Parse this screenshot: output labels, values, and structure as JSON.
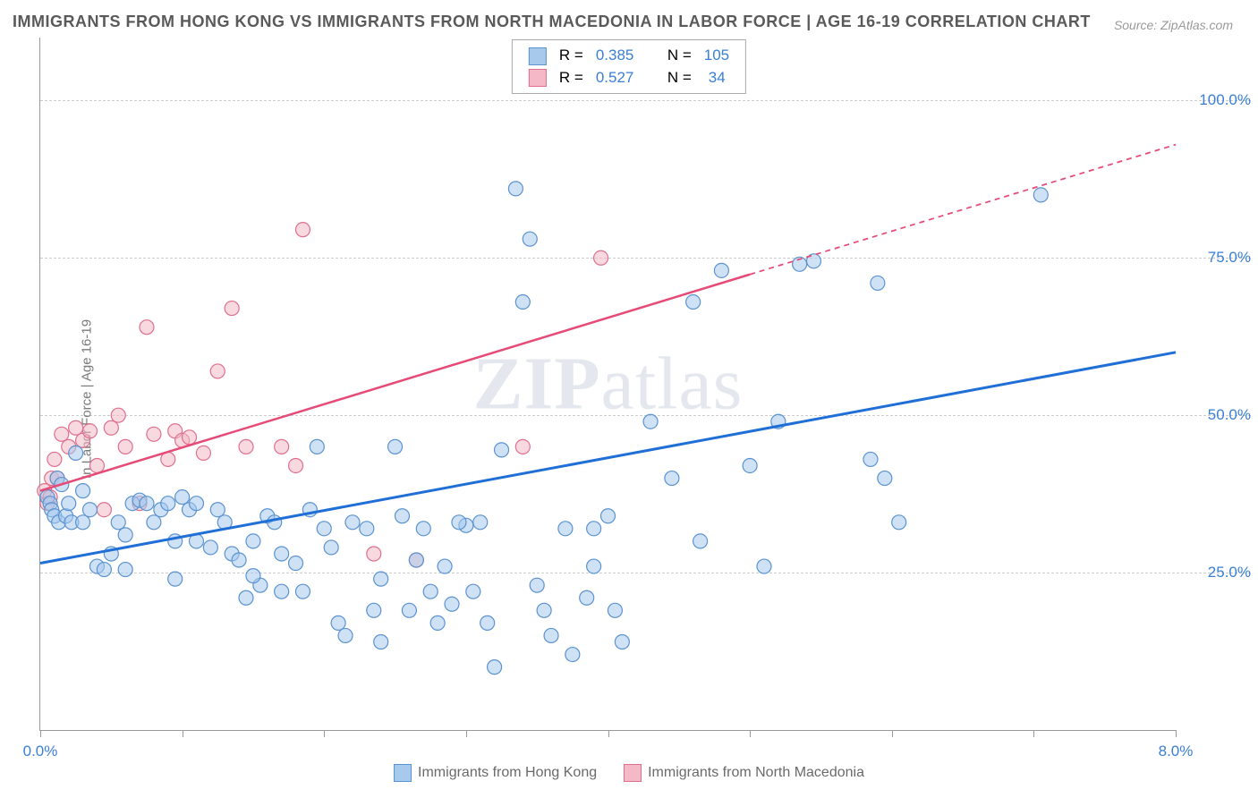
{
  "title": "IMMIGRANTS FROM HONG KONG VS IMMIGRANTS FROM NORTH MACEDONIA IN LABOR FORCE | AGE 16-19 CORRELATION CHART",
  "source": "Source: ZipAtlas.com",
  "ylabel": "In Labor Force | Age 16-19",
  "watermark_bold": "ZIP",
  "watermark_light": "atlas",
  "chart": {
    "type": "scatter",
    "xlim": [
      0,
      8
    ],
    "ylim": [
      0,
      110
    ],
    "xtick_positions": [
      0,
      1,
      2,
      3,
      4,
      5,
      6,
      7,
      8
    ],
    "xtick_labels": {
      "0": "0.0%",
      "8": "8.0%"
    },
    "ytick_positions": [
      25,
      50,
      75,
      100
    ],
    "ytick_labels": [
      "25.0%",
      "50.0%",
      "75.0%",
      "100.0%"
    ],
    "background_color": "#ffffff",
    "grid_color": "#cccccc",
    "axis_color": "#999999",
    "series": [
      {
        "name": "Immigrants from Hong Kong",
        "color_fill": "#a6c9ec",
        "color_stroke": "#5b93d0",
        "marker_radius": 8,
        "fill_opacity": 0.55,
        "R": "0.385",
        "N": "105",
        "trend": {
          "x1": 0,
          "y1": 26.5,
          "x2": 8,
          "y2": 60,
          "solid_x_end": 8,
          "stroke": "#1f6fd6",
          "stroke_width": 3
        },
        "points": [
          [
            0.05,
            37
          ],
          [
            0.07,
            36
          ],
          [
            0.08,
            35
          ],
          [
            0.1,
            34
          ],
          [
            0.12,
            40
          ],
          [
            0.13,
            33
          ],
          [
            0.15,
            39
          ],
          [
            0.18,
            34
          ],
          [
            0.2,
            36
          ],
          [
            0.22,
            33
          ],
          [
            0.25,
            44
          ],
          [
            0.3,
            38
          ],
          [
            0.4,
            26
          ],
          [
            0.45,
            25.5
          ],
          [
            0.5,
            28
          ],
          [
            0.3,
            33
          ],
          [
            0.35,
            35
          ],
          [
            0.55,
            33
          ],
          [
            0.6,
            31
          ],
          [
            0.65,
            36
          ],
          [
            0.7,
            36.5
          ],
          [
            0.75,
            36
          ],
          [
            0.8,
            33
          ],
          [
            0.85,
            35
          ],
          [
            0.9,
            36
          ],
          [
            0.95,
            30
          ],
          [
            1.0,
            37
          ],
          [
            1.05,
            35
          ],
          [
            1.1,
            36
          ],
          [
            1.2,
            29
          ],
          [
            1.25,
            35
          ],
          [
            1.3,
            33
          ],
          [
            1.35,
            28
          ],
          [
            1.4,
            27
          ],
          [
            1.45,
            21
          ],
          [
            1.5,
            30
          ],
          [
            1.55,
            23
          ],
          [
            1.6,
            34
          ],
          [
            1.65,
            33
          ],
          [
            1.7,
            22
          ],
          [
            1.8,
            26.5
          ],
          [
            1.85,
            22
          ],
          [
            1.9,
            35
          ],
          [
            1.95,
            45
          ],
          [
            2.0,
            32
          ],
          [
            2.05,
            29
          ],
          [
            2.1,
            17
          ],
          [
            2.15,
            15
          ],
          [
            2.2,
            33
          ],
          [
            2.3,
            32
          ],
          [
            2.35,
            19
          ],
          [
            2.4,
            14
          ],
          [
            2.5,
            45
          ],
          [
            2.6,
            19
          ],
          [
            2.65,
            27
          ],
          [
            2.7,
            32
          ],
          [
            2.75,
            22
          ],
          [
            2.8,
            17
          ],
          [
            2.85,
            26
          ],
          [
            2.9,
            20
          ],
          [
            3.0,
            32.5
          ],
          [
            3.05,
            22
          ],
          [
            3.1,
            33
          ],
          [
            3.15,
            17
          ],
          [
            3.2,
            10
          ],
          [
            3.25,
            44.5
          ],
          [
            3.35,
            86
          ],
          [
            3.4,
            68
          ],
          [
            3.45,
            78
          ],
          [
            3.55,
            19
          ],
          [
            3.6,
            15
          ],
          [
            3.7,
            32
          ],
          [
            3.75,
            12
          ],
          [
            3.85,
            21
          ],
          [
            3.9,
            26
          ],
          [
            4.0,
            34
          ],
          [
            4.05,
            19
          ],
          [
            4.1,
            14
          ],
          [
            4.3,
            49
          ],
          [
            4.45,
            40
          ],
          [
            4.6,
            68
          ],
          [
            4.65,
            30
          ],
          [
            4.8,
            73
          ],
          [
            4.9,
            105
          ],
          [
            5.0,
            42
          ],
          [
            5.1,
            26
          ],
          [
            5.2,
            49
          ],
          [
            5.35,
            74
          ],
          [
            5.45,
            74.5
          ],
          [
            5.85,
            43
          ],
          [
            5.9,
            71
          ],
          [
            5.95,
            40
          ],
          [
            6.05,
            33
          ],
          [
            7.05,
            85
          ],
          [
            0.6,
            25.5
          ],
          [
            0.95,
            24
          ],
          [
            1.1,
            30
          ],
          [
            1.5,
            24.5
          ],
          [
            1.7,
            28
          ],
          [
            2.4,
            24
          ],
          [
            2.55,
            34
          ],
          [
            2.95,
            33
          ],
          [
            3.5,
            23
          ],
          [
            3.9,
            32
          ]
        ]
      },
      {
        "name": "Immigrants from North Macedonia",
        "color_fill": "#f3b9c7",
        "color_stroke": "#e06f8d",
        "marker_radius": 8,
        "fill_opacity": 0.55,
        "R": "0.527",
        "N": "34",
        "trend": {
          "x1": 0,
          "y1": 38,
          "x2": 8,
          "y2": 93,
          "solid_x_end": 5.0,
          "stroke": "#e64b77",
          "stroke_width": 2.5
        },
        "points": [
          [
            0.03,
            38
          ],
          [
            0.05,
            36
          ],
          [
            0.07,
            37
          ],
          [
            0.08,
            40
          ],
          [
            0.1,
            43
          ],
          [
            0.12,
            40
          ],
          [
            0.15,
            47
          ],
          [
            0.2,
            45
          ],
          [
            0.25,
            48
          ],
          [
            0.3,
            46
          ],
          [
            0.35,
            47.5
          ],
          [
            0.4,
            42
          ],
          [
            0.45,
            35
          ],
          [
            0.5,
            48
          ],
          [
            0.55,
            50
          ],
          [
            0.6,
            45
          ],
          [
            0.7,
            36
          ],
          [
            0.75,
            64
          ],
          [
            0.8,
            47
          ],
          [
            0.9,
            43
          ],
          [
            0.95,
            47.5
          ],
          [
            1.0,
            46
          ],
          [
            1.05,
            46.5
          ],
          [
            1.15,
            44
          ],
          [
            1.25,
            57
          ],
          [
            1.35,
            67
          ],
          [
            1.45,
            45
          ],
          [
            1.7,
            45
          ],
          [
            1.8,
            42
          ],
          [
            1.85,
            79.5
          ],
          [
            2.35,
            28
          ],
          [
            2.65,
            27
          ],
          [
            3.4,
            45
          ],
          [
            3.95,
            75
          ]
        ]
      }
    ]
  },
  "top_legend": {
    "R_label": "R =",
    "N_label": "N ="
  },
  "bottom_legend": {
    "s1": "Immigrants from Hong Kong",
    "s2": "Immigrants from North Macedonia"
  }
}
